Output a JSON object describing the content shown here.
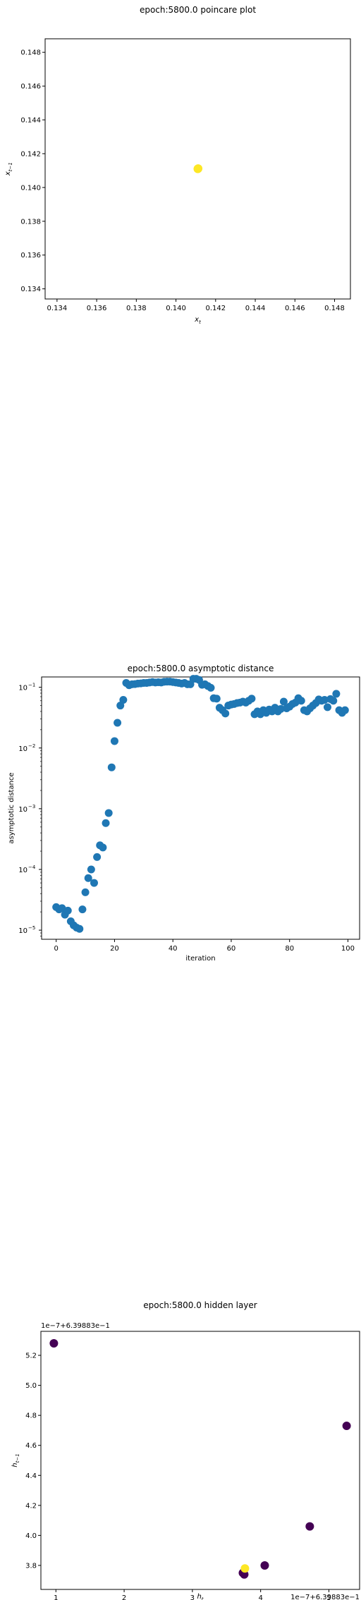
{
  "chart_data": [
    {
      "type": "scatter",
      "title": "epoch:5800.0 poincare plot",
      "xlabel": "x_t",
      "ylabel": "x_{t−1}",
      "xlim": [
        0.1334,
        0.1488
      ],
      "ylim": [
        0.1334,
        0.1488
      ],
      "xticks": [
        "0.134",
        "0.136",
        "0.138",
        "0.140",
        "0.142",
        "0.144",
        "0.146",
        "0.148"
      ],
      "yticks": [
        "0.134",
        "0.136",
        "0.138",
        "0.140",
        "0.142",
        "0.144",
        "0.146",
        "0.148"
      ],
      "grid": false,
      "marker_color": "#fde725",
      "points": [
        [
          0.14111,
          0.14111
        ],
        [
          0.14112,
          0.14112
        ],
        [
          0.1411,
          0.1411
        ]
      ]
    },
    {
      "type": "scatter",
      "title": "epoch:5800.0 asymptotic distance",
      "xlabel": "iteration",
      "ylabel": "asymptotic distance",
      "xlim": [
        -5,
        104
      ],
      "yscale": "log",
      "ylim_log10": [
        -5.15,
        -0.83
      ],
      "xticks": [
        "0",
        "20",
        "40",
        "60",
        "80",
        "100"
      ],
      "yticks": [
        {
          "base": "10",
          "exp": "−1"
        },
        {
          "base": "10",
          "exp": "−2"
        },
        {
          "base": "10",
          "exp": "−3"
        },
        {
          "base": "10",
          "exp": "−4"
        },
        {
          "base": "10",
          "exp": "−5"
        }
      ],
      "grid": false,
      "marker_color": "#1f77b4",
      "x": [
        0,
        1,
        2,
        3,
        4,
        5,
        6,
        7,
        8,
        9,
        10,
        11,
        12,
        13,
        14,
        15,
        16,
        17,
        18,
        19,
        20,
        21,
        22,
        23,
        24,
        25,
        26,
        27,
        28,
        29,
        30,
        31,
        32,
        33,
        34,
        35,
        36,
        37,
        38,
        39,
        40,
        41,
        42,
        43,
        44,
        45,
        46,
        47,
        48,
        49,
        50,
        51,
        52,
        53,
        54,
        55,
        56,
        57,
        58,
        59,
        60,
        61,
        62,
        63,
        64,
        65,
        66,
        67,
        68,
        69,
        70,
        71,
        72,
        73,
        74,
        75,
        76,
        77,
        78,
        79,
        80,
        81,
        82,
        83,
        84,
        85,
        86,
        87,
        88,
        89,
        90,
        91,
        92,
        93,
        94,
        95,
        96,
        97,
        98,
        99
      ],
      "y": [
        2.4e-05,
        2.2e-05,
        2.3e-05,
        1.8e-05,
        2.1e-05,
        1.4e-05,
        1.2e-05,
        1.1e-05,
        1.05e-05,
        2.2e-05,
        4.2e-05,
        7.2e-05,
        0.0001,
        6e-05,
        0.00016,
        0.00025,
        0.00023,
        0.00058,
        0.00085,
        0.0048,
        0.013,
        0.026,
        0.05,
        0.062,
        0.118,
        0.108,
        0.112,
        0.113,
        0.115,
        0.116,
        0.118,
        0.118,
        0.12,
        0.122,
        0.12,
        0.121,
        0.12,
        0.123,
        0.124,
        0.124,
        0.122,
        0.12,
        0.118,
        0.115,
        0.118,
        0.112,
        0.112,
        0.138,
        0.138,
        0.132,
        0.11,
        0.112,
        0.105,
        0.098,
        0.066,
        0.065,
        0.046,
        0.042,
        0.037,
        0.05,
        0.052,
        0.053,
        0.055,
        0.056,
        0.058,
        0.056,
        0.06,
        0.065,
        0.036,
        0.04,
        0.036,
        0.042,
        0.038,
        0.043,
        0.04,
        0.046,
        0.04,
        0.044,
        0.058,
        0.045,
        0.048,
        0.053,
        0.056,
        0.066,
        0.06,
        0.042,
        0.04,
        0.045,
        0.05,
        0.055,
        0.063,
        0.06,
        0.062,
        0.047,
        0.064,
        0.06,
        0.078,
        0.042,
        0.038,
        0.042
      ],
      "y_points_shown": [
        2.4e-05,
        2.2e-05,
        2.3e-05,
        1.8e-05,
        2.1e-05,
        1.4e-05,
        1.2e-05,
        1.1e-05,
        1.05e-05,
        2.2e-05,
        4.2e-05,
        7.2e-05,
        0.0001,
        6e-05,
        0.00016,
        0.00025,
        0.00023,
        0.00058,
        0.00085,
        0.0048,
        0.013,
        0.026,
        0.05,
        0.062,
        0.118,
        0.108,
        0.112,
        0.113,
        0.115,
        0.116,
        0.118,
        0.118,
        0.12,
        0.122,
        0.12,
        0.121,
        0.12,
        0.123,
        0.124,
        0.124,
        0.122,
        0.12,
        0.118,
        0.115,
        0.118,
        0.112,
        0.112,
        0.138,
        0.138,
        0.132,
        0.11,
        0.112,
        0.105,
        0.098,
        0.066,
        0.065,
        0.046,
        0.042,
        0.037,
        0.05,
        0.052,
        0.053,
        0.055,
        0.056,
        0.058,
        0.056,
        0.06,
        0.065,
        0.036,
        0.04,
        0.036,
        0.042,
        0.038,
        0.043,
        0.04,
        0.046,
        0.04,
        0.044,
        0.058,
        0.045,
        0.048,
        0.053,
        0.056,
        0.066,
        0.06,
        0.042,
        0.04,
        0.045,
        0.05,
        0.055,
        0.063,
        0.06,
        0.062,
        0.047,
        0.064,
        0.06,
        0.078,
        0.042,
        0.038,
        0.042
      ]
    },
    {
      "type": "scatter",
      "title": "epoch:5800.0 hidden layer",
      "xlabel": "h_t",
      "ylabel": "h_{t−1}",
      "x_offset_text": "1e−7+6.39883e−1",
      "y_offset_text": "1e−7+6.39883e−1",
      "xlim": [
        0.78,
        5.45
      ],
      "ylim": [
        3.64,
        5.36
      ],
      "xticks": [
        "1",
        "2",
        "3",
        "4",
        "5"
      ],
      "yticks": [
        "3.8",
        "4.0",
        "4.2",
        "4.4",
        "4.6",
        "4.8",
        "5.0",
        "5.2"
      ],
      "grid": false,
      "colormap_ends": [
        "#440154",
        "#fde725"
      ],
      "points": [
        {
          "x": 0.97,
          "y": 5.28,
          "c": 0
        },
        {
          "x": 5.26,
          "y": 4.73,
          "c": 0
        },
        {
          "x": 4.72,
          "y": 4.06,
          "c": 0
        },
        {
          "x": 4.06,
          "y": 3.8,
          "c": 0
        },
        {
          "x": 3.76,
          "y": 3.74,
          "c": 0
        },
        {
          "x": 3.74,
          "y": 3.75,
          "c": 0
        },
        {
          "x": 3.77,
          "y": 3.78,
          "c": 1
        }
      ]
    }
  ]
}
